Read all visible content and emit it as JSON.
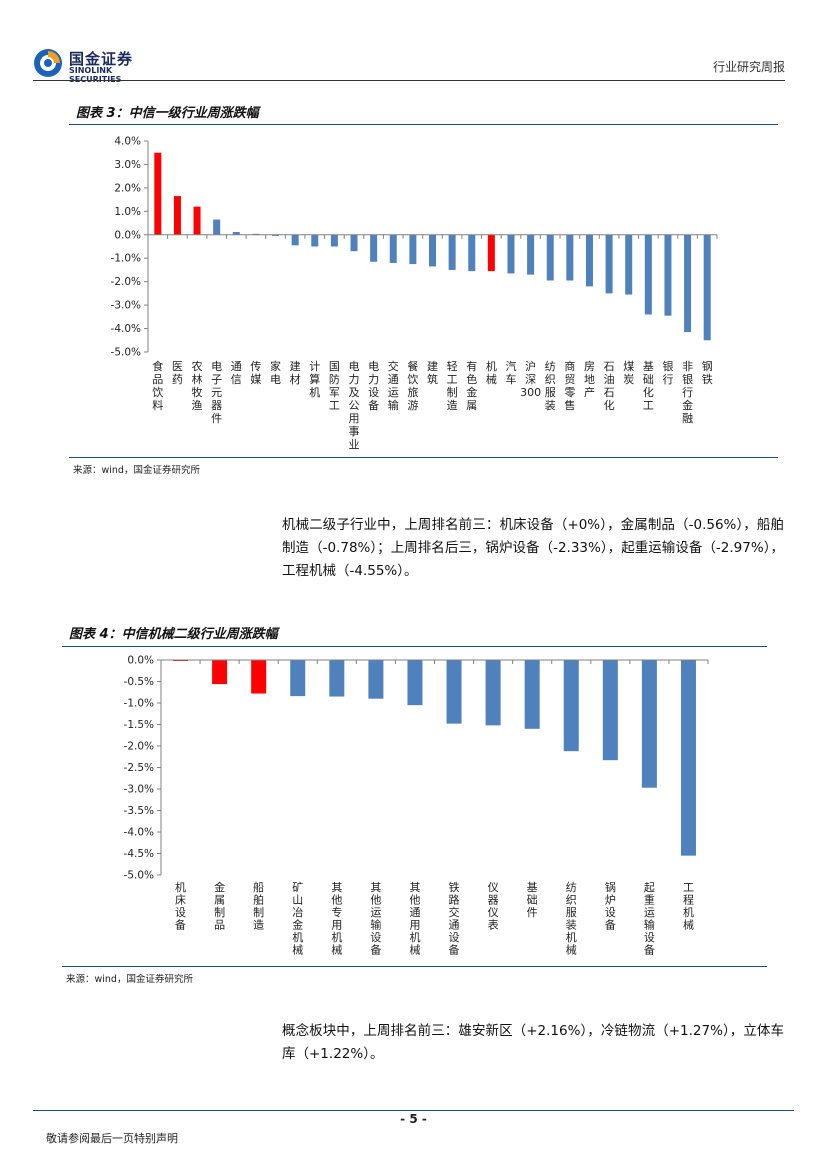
{
  "header": {
    "brand_cn": "国金证券",
    "brand_en": "SINOLINK SECURITIES",
    "report_type": "行业研究周报"
  },
  "colors": {
    "bar_blue": "#4f81bd",
    "bar_red": "#ff0000",
    "rule_blue": "#1c4a8f"
  },
  "figure3": {
    "title": "图表 3：中信一级行业周涨跌幅",
    "source": "来源：wind，国金证券研究所"
  },
  "paragraph1": "机械二级子行业中，上周排名前三：机床设备（+0%），金属制品（-0.56%），船舶制造（-0.78%）；上周排名后三，锅炉设备（-2.33%），起重运输设备（-2.97%），工程机械（-4.55%）。",
  "figure4": {
    "title": "图表 4：中信机械二级行业周涨跌幅",
    "source": "来源：wind，国金证券研究所"
  },
  "paragraph2": "概念板块中，上周排名前三：雄安新区（+2.16%），冷链物流（+1.27%），立体车库（+1.22%）。",
  "footer": {
    "page_number": "- 5 -",
    "disclaimer": "敬请参阅最后一页特别声明"
  },
  "chart_data": [
    {
      "type": "bar",
      "title": "中信一级行业周涨跌幅",
      "ylim": [
        -5.0,
        4.0
      ],
      "y_ticks": [
        4.0,
        3.0,
        2.0,
        1.0,
        0.0,
        -1.0,
        -2.0,
        -3.0,
        -4.0,
        -5.0
      ],
      "y_tick_labels": [
        "4.0%",
        "3.0%",
        "2.0%",
        "1.0%",
        "0.0%",
        "-1.0%",
        "-2.0%",
        "-3.0%",
        "-4.0%",
        "-5.0%"
      ],
      "categories": [
        "食品饮料",
        "医药",
        "农林牧渔",
        "电子元器件",
        "通信",
        "传媒",
        "家电",
        "建材",
        "计算机",
        "国防军工",
        "电力及公用事业",
        "电力设备",
        "交通运输",
        "餐饮旅游",
        "建筑",
        "轻工制造",
        "有色金属",
        "机械",
        "汽车",
        "沪深300",
        "纺织服装",
        "商贸零售",
        "房地产",
        "石油石化",
        "煤炭",
        "基础化工",
        "银行",
        "非银行金融",
        "钢铁"
      ],
      "values": [
        3.5,
        1.65,
        1.2,
        0.65,
        0.12,
        0.04,
        -0.05,
        -0.45,
        -0.5,
        -0.5,
        -0.7,
        -1.15,
        -1.2,
        -1.25,
        -1.35,
        -1.5,
        -1.55,
        -1.55,
        -1.65,
        -1.7,
        -1.95,
        -1.95,
        -2.2,
        -2.5,
        -2.55,
        -3.4,
        -3.45,
        -4.15,
        -4.5
      ],
      "highlight": [
        true,
        true,
        true,
        false,
        false,
        false,
        false,
        false,
        false,
        false,
        false,
        false,
        false,
        false,
        false,
        false,
        false,
        true,
        false,
        false,
        false,
        false,
        false,
        false,
        false,
        false,
        false,
        false,
        false
      ]
    },
    {
      "type": "bar",
      "title": "中信机械二级行业周涨跌幅",
      "ylim": [
        -5.0,
        0.0
      ],
      "y_ticks": [
        0.0,
        -0.5,
        -1.0,
        -1.5,
        -2.0,
        -2.5,
        -3.0,
        -3.5,
        -4.0,
        -4.5,
        -5.0
      ],
      "y_tick_labels": [
        "0.0%",
        "-0.5%",
        "-1.0%",
        "-1.5%",
        "-2.0%",
        "-2.5%",
        "-3.0%",
        "-3.5%",
        "-4.0%",
        "-4.5%",
        "-5.0%"
      ],
      "categories": [
        "机床设备",
        "金属制品",
        "船舶制造",
        "矿山冶金机械",
        "其他专用机械",
        "其他运输设备",
        "其他通用机械",
        "铁路交通设备",
        "仪器仪表",
        "基础件",
        "纺织服装机械",
        "锅炉设备",
        "起重运输设备",
        "工程机械"
      ],
      "values": [
        -0.02,
        -0.56,
        -0.78,
        -0.84,
        -0.85,
        -0.9,
        -1.05,
        -1.48,
        -1.52,
        -1.6,
        -2.12,
        -2.33,
        -2.97,
        -4.55
      ],
      "highlight": [
        true,
        true,
        true,
        false,
        false,
        false,
        false,
        false,
        false,
        false,
        false,
        false,
        false,
        false
      ]
    }
  ]
}
